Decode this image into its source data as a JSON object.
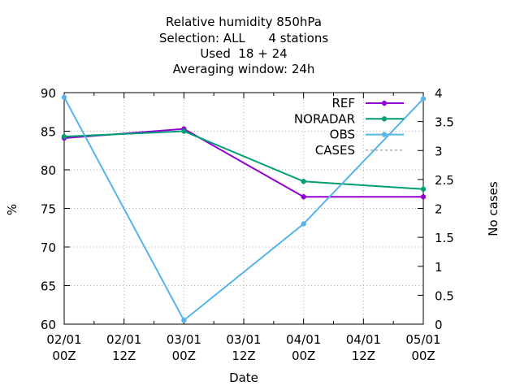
{
  "chart_data": {
    "type": "line",
    "title_lines": [
      "Relative humidity 850hPa",
      "Selection: ALL      4 stations",
      "Used  18 + 24",
      "Averaging window: 24h"
    ],
    "xlabel": "Date",
    "ylabel": "%",
    "y2label": "No cases",
    "x_ticks": [
      {
        "line1": "02/01",
        "line2": "00Z"
      },
      {
        "line1": "02/01",
        "line2": "12Z"
      },
      {
        "line1": "03/01",
        "line2": "00Z"
      },
      {
        "line1": "03/01",
        "line2": "12Z"
      },
      {
        "line1": "04/01",
        "line2": "00Z"
      },
      {
        "line1": "04/01",
        "line2": "12Z"
      },
      {
        "line1": "05/01",
        "line2": "00Z"
      }
    ],
    "ylim": [
      60,
      90
    ],
    "y_ticks": [
      "60",
      "65",
      "70",
      "75",
      "80",
      "85",
      "90"
    ],
    "y2lim": [
      0,
      4
    ],
    "y2_ticks": [
      "0",
      "0.5",
      "1",
      "1.5",
      "2",
      "2.5",
      "3",
      "3.5",
      "4"
    ],
    "grid": true,
    "legend_position": "top-right",
    "series": [
      {
        "name": "REF",
        "color": "#9400d3",
        "axis": "y1",
        "points": [
          {
            "x": 0,
            "y": 84.1
          },
          {
            "x": 1,
            "y": 85.3
          },
          {
            "x": 2,
            "y": 76.5
          },
          {
            "x": 3,
            "y": 76.5
          }
        ]
      },
      {
        "name": "NORADAR",
        "color": "#009e73",
        "axis": "y1",
        "points": [
          {
            "x": 0,
            "y": 84.3
          },
          {
            "x": 1,
            "y": 85.0
          },
          {
            "x": 2,
            "y": 78.5
          },
          {
            "x": 3,
            "y": 77.5
          }
        ]
      },
      {
        "name": "OBS",
        "color": "#56b4e9",
        "axis": "y1",
        "points": [
          {
            "x": 0,
            "y": 89.4
          },
          {
            "x": 1,
            "y": 60.5
          },
          {
            "x": 2,
            "y": 73.0
          },
          {
            "x": 3,
            "y": 89.2
          }
        ]
      },
      {
        "name": "CASES",
        "color": "#888888",
        "axis": "y2",
        "dashed": true,
        "points": []
      }
    ],
    "x_category_ticks": [
      0,
      0.5,
      1,
      1.5,
      2,
      2.5,
      3
    ]
  }
}
